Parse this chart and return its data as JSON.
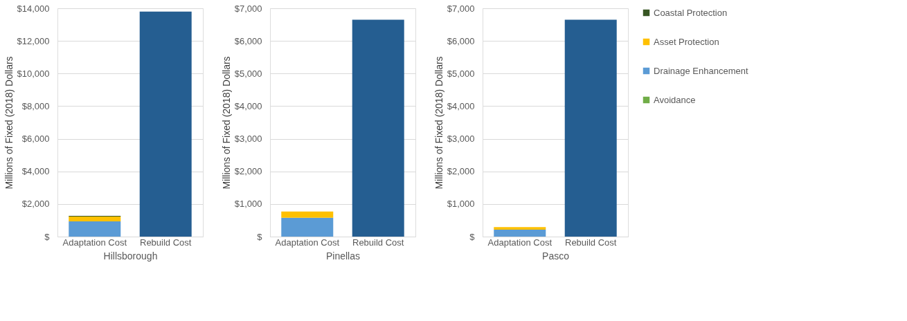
{
  "chart_data": [
    {
      "type": "bar",
      "stacked": true,
      "xlabel": "Hillsborough",
      "ylabel": "Millions of Fixed (2018) Dollars",
      "categories": [
        "Adaptation Cost",
        "Rebuild Cost"
      ],
      "ylim": [
        0,
        14000
      ],
      "yticks": [
        {
          "value": 0,
          "label": "$"
        },
        {
          "value": 2000,
          "label": "$2,000"
        },
        {
          "value": 4000,
          "label": "$4,000"
        },
        {
          "value": 6000,
          "label": "$6,000"
        },
        {
          "value": 8000,
          "label": "$8,000"
        },
        {
          "value": 10000,
          "label": "$10,000"
        },
        {
          "value": 12000,
          "label": "$12,000"
        },
        {
          "value": 14000,
          "label": "$14,000"
        }
      ],
      "grid": "y",
      "legend": false,
      "series": [
        {
          "color": "#70ad47",
          "values": [
            0,
            null
          ]
        },
        {
          "color": "#5b9bd5",
          "values": [
            930,
            null
          ]
        },
        {
          "color": "#ffc000",
          "values": [
            300,
            null
          ]
        },
        {
          "color": "#375623",
          "values": [
            40,
            null
          ]
        },
        {
          "color": "#255e91",
          "values": [
            null,
            13800
          ]
        }
      ]
    },
    {
      "type": "bar",
      "stacked": true,
      "xlabel": "Pinellas",
      "ylabel": "Millions of Fixed (2018) Dollars",
      "categories": [
        "Adaptation Cost",
        "Rebuild Cost"
      ],
      "ylim": [
        0,
        7000
      ],
      "yticks": [
        {
          "value": 0,
          "label": "$"
        },
        {
          "value": 1000,
          "label": "$1,000"
        },
        {
          "value": 2000,
          "label": "$2,000"
        },
        {
          "value": 3000,
          "label": "$3,000"
        },
        {
          "value": 4000,
          "label": "$4,000"
        },
        {
          "value": 5000,
          "label": "$5,000"
        },
        {
          "value": 6000,
          "label": "$6,000"
        },
        {
          "value": 7000,
          "label": "$7,000"
        }
      ],
      "grid": "y",
      "legend": false,
      "series": [
        {
          "color": "#70ad47",
          "values": [
            0,
            null
          ]
        },
        {
          "color": "#5b9bd5",
          "values": [
            580,
            null
          ]
        },
        {
          "color": "#ffc000",
          "values": [
            190,
            null
          ]
        },
        {
          "color": "#375623",
          "values": [
            0,
            null
          ]
        },
        {
          "color": "#255e91",
          "values": [
            null,
            6650
          ]
        }
      ]
    },
    {
      "type": "bar",
      "stacked": true,
      "xlabel": "Pasco",
      "ylabel": "Millions of Fixed (2018) Dollars",
      "categories": [
        "Adaptation Cost",
        "Rebuild Cost"
      ],
      "ylim": [
        0,
        7000
      ],
      "yticks": [
        {
          "value": 0,
          "label": "$"
        },
        {
          "value": 1000,
          "label": "$1,000"
        },
        {
          "value": 2000,
          "label": "$2,000"
        },
        {
          "value": 3000,
          "label": "$3,000"
        },
        {
          "value": 4000,
          "label": "$4,000"
        },
        {
          "value": 5000,
          "label": "$5,000"
        },
        {
          "value": 6000,
          "label": "$6,000"
        },
        {
          "value": 7000,
          "label": "$7,000"
        }
      ],
      "grid": "y",
      "legend": "right",
      "series": [
        {
          "name": "Avoidance",
          "color": "#70ad47",
          "values": [
            0,
            null
          ]
        },
        {
          "name": "Drainage Enhancement",
          "color": "#5b9bd5",
          "values": [
            210,
            null
          ]
        },
        {
          "name": "Asset Protection",
          "color": "#ffc000",
          "values": [
            80,
            null
          ]
        },
        {
          "name": "Coastal Protection",
          "color": "#375623",
          "values": [
            0,
            null
          ]
        },
        {
          "color": "#255e91",
          "values": [
            null,
            6650
          ]
        }
      ]
    }
  ]
}
